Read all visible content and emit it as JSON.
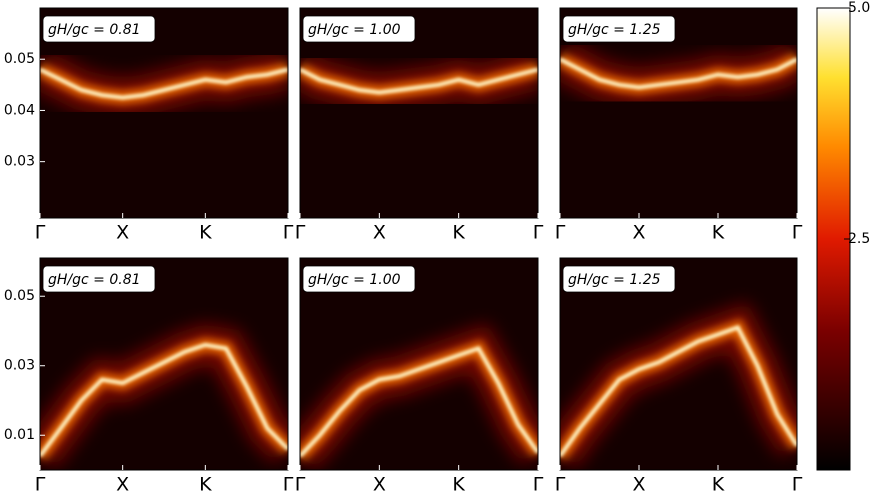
{
  "chart_data": [
    {
      "type": "line",
      "annotation": "gH/gc = 0.81",
      "color": "#fff6c8",
      "x": [
        0,
        0.25,
        0.5,
        0.75,
        1,
        1.25,
        1.5,
        1.75,
        2,
        2.25,
        2.5,
        2.75,
        3
      ],
      "values": [
        0.048,
        0.046,
        0.044,
        0.043,
        0.0425,
        0.043,
        0.044,
        0.045,
        0.046,
        0.0455,
        0.0465,
        0.047,
        0.048
      ],
      "xlim": [
        0,
        3
      ],
      "xticks": [
        {
          "value": 0,
          "label": "Γ"
        },
        {
          "value": 1,
          "label": "X"
        },
        {
          "value": 2,
          "label": "K"
        },
        {
          "value": 3,
          "label": "Γ"
        }
      ],
      "ylim": [
        0.019,
        0.06
      ],
      "yticks": [
        0.03,
        0.04,
        0.05
      ]
    },
    {
      "type": "line",
      "annotation": "gH/gc = 1.00",
      "color": "#fff6c8",
      "x": [
        0,
        0.25,
        0.5,
        0.75,
        1,
        1.25,
        1.5,
        1.75,
        2,
        2.25,
        2.5,
        2.75,
        3
      ],
      "values": [
        0.048,
        0.046,
        0.045,
        0.044,
        0.0435,
        0.044,
        0.0445,
        0.045,
        0.046,
        0.045,
        0.046,
        0.047,
        0.048
      ],
      "xlim": [
        0,
        3
      ],
      "xticks": [
        {
          "value": 0,
          "label": "Γ"
        },
        {
          "value": 1,
          "label": "X"
        },
        {
          "value": 2,
          "label": "K"
        },
        {
          "value": 3,
          "label": "Γ"
        }
      ],
      "ylim": [
        0.019,
        0.06
      ]
    },
    {
      "type": "line",
      "annotation": "gH/gc = 1.25",
      "color": "#fff6c8",
      "x": [
        0,
        0.25,
        0.5,
        0.75,
        1,
        1.25,
        1.5,
        1.75,
        2,
        2.25,
        2.5,
        2.75,
        3
      ],
      "values": [
        0.05,
        0.048,
        0.046,
        0.045,
        0.0445,
        0.045,
        0.0455,
        0.046,
        0.047,
        0.0465,
        0.047,
        0.048,
        0.05
      ],
      "xlim": [
        0,
        3
      ],
      "xticks": [
        {
          "value": 0,
          "label": "Γ"
        },
        {
          "value": 1,
          "label": "X"
        },
        {
          "value": 2,
          "label": "K"
        },
        {
          "value": 3,
          "label": "Γ"
        }
      ],
      "ylim": [
        0.019,
        0.06
      ]
    },
    {
      "type": "line",
      "annotation": "gH/gc = 0.81",
      "color": "#fff6c8",
      "x": [
        0,
        0.25,
        0.5,
        0.75,
        1,
        1.25,
        1.5,
        1.75,
        2,
        2.25,
        2.5,
        2.75,
        3
      ],
      "values": [
        0.004,
        0.012,
        0.02,
        0.026,
        0.025,
        0.028,
        0.031,
        0.034,
        0.036,
        0.035,
        0.024,
        0.012,
        0.006
      ],
      "xlim": [
        0,
        3
      ],
      "xticks": [
        {
          "value": 0,
          "label": "Γ"
        },
        {
          "value": 1,
          "label": "X"
        },
        {
          "value": 2,
          "label": "K"
        },
        {
          "value": 3,
          "label": "Γ"
        }
      ],
      "ylim": [
        0,
        0.061
      ],
      "yticks": [
        0.01,
        0.03,
        0.05
      ]
    },
    {
      "type": "line",
      "annotation": "gH/gc = 1.00",
      "color": "#fff6c8",
      "x": [
        0,
        0.25,
        0.5,
        0.75,
        1,
        1.25,
        1.5,
        1.75,
        2,
        2.25,
        2.5,
        2.75,
        3
      ],
      "values": [
        0.004,
        0.01,
        0.017,
        0.023,
        0.026,
        0.027,
        0.029,
        0.031,
        0.033,
        0.035,
        0.025,
        0.013,
        0.005
      ],
      "xlim": [
        0,
        3
      ],
      "xticks": [
        {
          "value": 0,
          "label": "Γ"
        },
        {
          "value": 1,
          "label": "X"
        },
        {
          "value": 2,
          "label": "K"
        },
        {
          "value": 3,
          "label": "Γ"
        }
      ],
      "ylim": [
        0,
        0.061
      ]
    },
    {
      "type": "line",
      "annotation": "gH/gc = 1.25",
      "color": "#fff6c8",
      "x": [
        0,
        0.25,
        0.5,
        0.75,
        1,
        1.25,
        1.5,
        1.75,
        2,
        2.25,
        2.5,
        2.75,
        3
      ],
      "values": [
        0.004,
        0.012,
        0.019,
        0.026,
        0.029,
        0.031,
        0.034,
        0.037,
        0.039,
        0.041,
        0.03,
        0.016,
        0.007
      ],
      "xlim": [
        0,
        3
      ],
      "xticks": [
        {
          "value": 0,
          "label": "Γ"
        },
        {
          "value": 1,
          "label": "X"
        },
        {
          "value": 2,
          "label": "K"
        },
        {
          "value": 3,
          "label": "Γ"
        }
      ],
      "ylim": [
        0,
        0.061
      ]
    }
  ],
  "colorbar": {
    "clim": [
      0,
      5
    ],
    "ticks": [
      2.5,
      {
        "value": 5,
        "label": "5.0"
      }
    ]
  }
}
